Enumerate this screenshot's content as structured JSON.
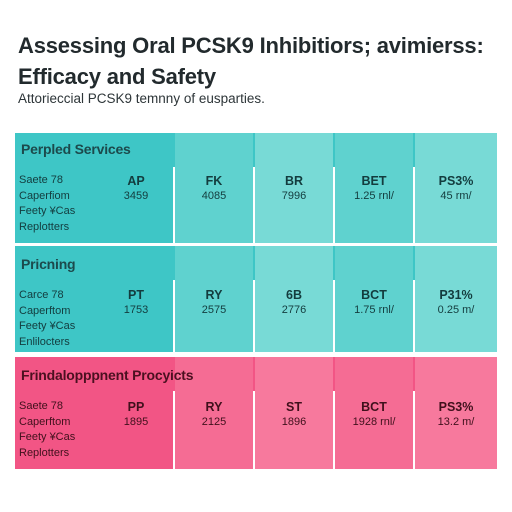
{
  "header": {
    "title": "Assessing Oral PCSK9 Inhibitiors; avimierss: Efficacy and Safety",
    "subtitle": "Attorieccial PCSK9 temnny of eusparties."
  },
  "colors": {
    "teal": "#3ec6c6",
    "teal_light": "#78dad6",
    "pink": "#f25585",
    "pink_light": "#f7799d"
  },
  "sections": [
    {
      "label": "Perpled Services",
      "row_lines": [
        "Saete 78",
        "Caperfiom",
        "Feety ¥Cas",
        "Replotters"
      ],
      "columns": [
        {
          "head": "AP",
          "value": "3459"
        },
        {
          "head": "FK",
          "value": "4085"
        },
        {
          "head": "BR",
          "value": "7996"
        },
        {
          "head": "BET",
          "value": "1.25 rnl/"
        },
        {
          "head": "PS3%",
          "value": "45 rm/"
        }
      ]
    },
    {
      "label": "Pricning",
      "row_lines": [
        "Carce 78",
        "Caperftom",
        "Feety ¥Cas",
        "Enlilocters"
      ],
      "columns": [
        {
          "head": "PT",
          "value": "1753"
        },
        {
          "head": "RY",
          "value": "2575"
        },
        {
          "head": "6B",
          "value": "2776"
        },
        {
          "head": "BCT",
          "value": "1.75 rnl/"
        },
        {
          "head": "P31%",
          "value": "0.25 m/"
        }
      ]
    },
    {
      "label": "Frindalopppnent Procyicts",
      "row_lines": [
        "Saete 78",
        "Caperftom",
        "Feety ¥Cas",
        "Replotters"
      ],
      "columns": [
        {
          "head": "PP",
          "value": "1895"
        },
        {
          "head": "RY",
          "value": "2125"
        },
        {
          "head": "ST",
          "value": "1896"
        },
        {
          "head": "BCT",
          "value": "1928 rnl/"
        },
        {
          "head": "PS3%",
          "value": "13.2 m/"
        }
      ]
    }
  ]
}
